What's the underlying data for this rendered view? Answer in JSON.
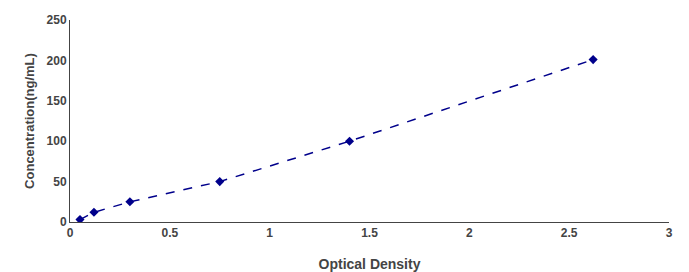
{
  "chart_data": {
    "type": "line",
    "x": [
      0.05,
      0.12,
      0.3,
      0.75,
      1.4,
      2.62
    ],
    "values": [
      3,
      12,
      25,
      50,
      100,
      201
    ],
    "color": "#00008B",
    "marker": "diamond",
    "line_style": "dashed",
    "xlabel": "Optical Density",
    "ylabel": "Concentration(ng/mL)",
    "xlim": [
      0,
      3
    ],
    "ylim": [
      0,
      250
    ],
    "xticks": [
      0,
      0.5,
      1,
      1.5,
      2,
      2.5,
      3
    ],
    "yticks": [
      0,
      50,
      100,
      150,
      200,
      250
    ],
    "grid": false
  }
}
